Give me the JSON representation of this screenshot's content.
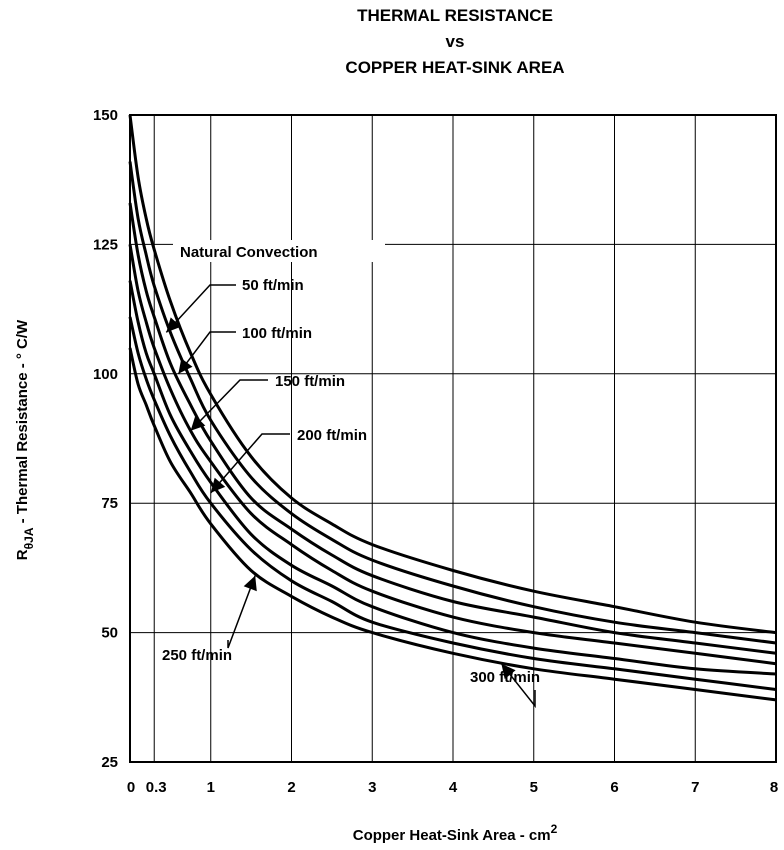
{
  "chart_data": {
    "type": "line",
    "title": [
      "THERMAL RESISTANCE",
      "vs",
      "COPPER HEAT-SINK AREA"
    ],
    "xlabel": "Copper Heat-Sink Area - cm",
    "xlabel_superscript": "2",
    "ylabel": {
      "prefix": "R",
      "sub_symbol": "θ",
      "sub_text": "JA",
      "rest": " - Thermal Resistance -  ° C/W"
    },
    "xlim": [
      0,
      8
    ],
    "ylim": [
      25,
      150
    ],
    "x_ticks": [
      0,
      0.3,
      1,
      2,
      3,
      4,
      5,
      6,
      7,
      8
    ],
    "x_tick_labels": [
      "0",
      "0.3",
      "1",
      "2",
      "3",
      "4",
      "5",
      "6",
      "7",
      "8"
    ],
    "y_ticks": [
      25,
      50,
      75,
      100,
      125,
      150
    ],
    "y_tick_labels": [
      "25",
      "50",
      "75",
      "100",
      "125",
      "150"
    ],
    "grid": true,
    "x": [
      0,
      0.1,
      0.2,
      0.3,
      0.5,
      0.75,
      1,
      1.5,
      2,
      2.5,
      3,
      4,
      5,
      6,
      7,
      8
    ],
    "series": [
      {
        "name": "Natural Convection",
        "values": [
          150,
          138,
          130,
          124,
          114,
          104,
          96,
          84,
          76,
          71,
          67,
          62,
          58,
          55,
          52,
          50
        ]
      },
      {
        "name": "50 ft/min",
        "values": [
          141,
          130,
          123,
          117,
          108,
          99,
          91,
          80,
          73,
          68,
          64,
          59,
          55,
          52,
          50,
          48
        ]
      },
      {
        "name": "100 ft/min",
        "values": [
          133,
          123,
          116,
          111,
          102,
          94,
          87,
          76,
          70,
          65,
          61,
          56,
          53,
          50,
          48,
          46
        ]
      },
      {
        "name": "150 ft/min",
        "values": [
          125,
          116,
          110,
          105,
          97,
          89,
          83,
          73,
          67,
          62,
          58,
          53,
          50,
          48,
          46,
          44
        ]
      },
      {
        "name": "200 ft/min",
        "values": [
          118,
          110,
          104,
          100,
          92,
          85,
          79,
          69,
          63,
          59,
          55,
          50,
          47,
          45,
          43,
          42
        ]
      },
      {
        "name": "250 ft/min",
        "values": [
          111,
          104,
          99,
          95,
          88,
          81,
          75,
          66,
          60,
          56,
          52,
          48,
          45,
          43,
          41,
          39
        ]
      },
      {
        "name": "300 ft/min",
        "values": [
          105,
          98,
          94,
          90,
          83,
          77,
          71,
          62,
          57,
          53,
          50,
          46,
          43,
          41,
          39,
          37
        ]
      }
    ],
    "annotations": [
      {
        "text": "Natural Convection",
        "series": "Natural Convection",
        "x": 0.55,
        "y": 115
      },
      {
        "text": "50 ft/min",
        "series": "50 ft/min",
        "x": 0.45,
        "y": 108
      },
      {
        "text": "100 ft/min",
        "series": "100 ft/min",
        "x": 0.6,
        "y": 100
      },
      {
        "text": "150 ft/min",
        "series": "150 ft/min",
        "x": 0.75,
        "y": 89
      },
      {
        "text": "200 ft/min",
        "series": "200 ft/min",
        "x": 1.0,
        "y": 77
      },
      {
        "text": "250 ft/min",
        "series": "250 ft/min",
        "x": 1.55,
        "y": 61
      },
      {
        "text": "300 ft/min",
        "series": "300 ft/min",
        "x": 4.6,
        "y": 44
      }
    ]
  }
}
